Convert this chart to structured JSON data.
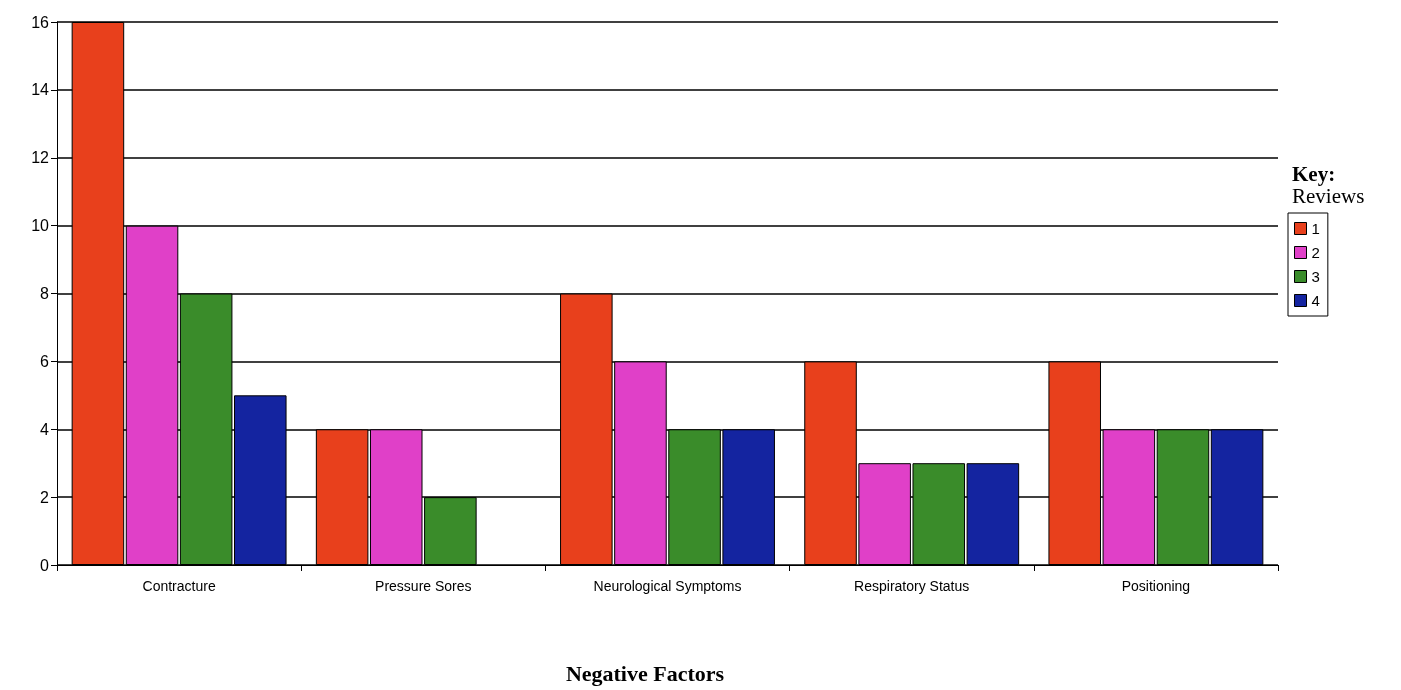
{
  "chart_data": {
    "type": "bar",
    "categories": [
      "Contracture",
      "Pressure Sores",
      "Neurological Symptoms",
      "Respiratory Status",
      "Positioning"
    ],
    "series": [
      {
        "name": "1",
        "color": "#e8401c",
        "values": [
          16,
          4,
          8,
          6,
          6
        ]
      },
      {
        "name": "2",
        "color": "#e040c8",
        "values": [
          10,
          4,
          6,
          3,
          4
        ]
      },
      {
        "name": "3",
        "color": "#3a8c2a",
        "values": [
          8,
          2,
          4,
          3,
          4
        ]
      },
      {
        "name": "4",
        "color": "#1424a0",
        "values": [
          5,
          null,
          4,
          3,
          4
        ]
      }
    ],
    "xlabel": "Negative Factors",
    "legend_title": "Reviews",
    "annotations": [
      "Key:"
    ],
    "ylim": [
      0,
      16
    ],
    "yticks": [
      0,
      2,
      4,
      6,
      8,
      10,
      12,
      14,
      16
    ],
    "grid": "y",
    "legend": "right"
  }
}
